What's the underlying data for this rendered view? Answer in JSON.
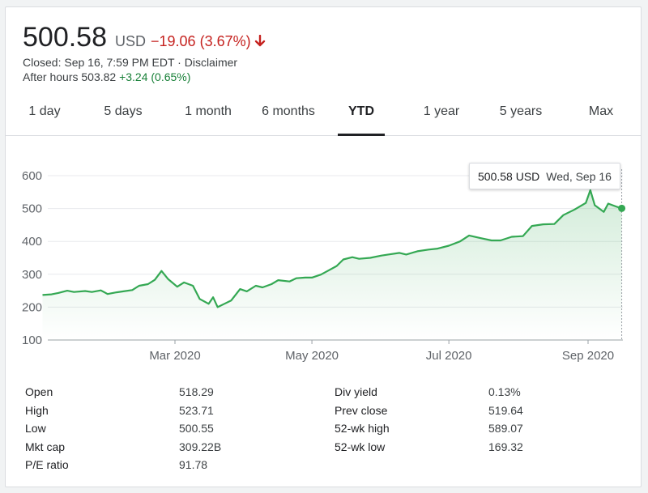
{
  "header": {
    "price": "500.58",
    "currency": "USD",
    "change": "−19.06 (3.67%)",
    "closed_text": "Closed: Sep 16, 7:59 PM EDT · Disclaimer",
    "after_hours_label": "After hours 503.82",
    "after_hours_change": "+3.24 (0.65%)"
  },
  "tabs": [
    {
      "label": "1 day"
    },
    {
      "label": "5 days"
    },
    {
      "label": "1 month"
    },
    {
      "label": "6 months"
    },
    {
      "label": "YTD",
      "active": true
    },
    {
      "label": "1 year"
    },
    {
      "label": "5 years"
    },
    {
      "label": "Max"
    }
  ],
  "tooltip": {
    "value": "500.58 USD",
    "date": "Wed, Sep 16"
  },
  "colors": {
    "line": "#34a853",
    "negative": "#c5221f",
    "positive": "#188038"
  },
  "chart_data": {
    "type": "line",
    "ylim": [
      100,
      600
    ],
    "yticks": [
      100,
      200,
      300,
      400,
      500,
      600
    ],
    "xticks": [
      {
        "label": "Mar 2020",
        "date": "2020-03-01"
      },
      {
        "label": "May 2020",
        "date": "2020-05-01"
      },
      {
        "label": "Jul 2020",
        "date": "2020-07-01"
      },
      {
        "label": "Sep 2020",
        "date": "2020-09-01"
      }
    ],
    "grid": true,
    "series": [
      {
        "x": [
          "2020-01-02",
          "2020-01-06",
          "2020-01-09",
          "2020-01-13",
          "2020-01-16",
          "2020-01-21",
          "2020-01-24",
          "2020-01-28",
          "2020-01-31",
          "2020-02-04",
          "2020-02-07",
          "2020-02-11",
          "2020-02-14",
          "2020-02-18",
          "2020-02-21",
          "2020-02-24",
          "2020-02-27",
          "2020-03-02",
          "2020-03-05",
          "2020-03-09",
          "2020-03-12",
          "2020-03-16",
          "2020-03-18",
          "2020-03-20",
          "2020-03-23",
          "2020-03-26",
          "2020-03-30",
          "2020-04-02",
          "2020-04-06",
          "2020-04-09",
          "2020-04-13",
          "2020-04-16",
          "2020-04-21",
          "2020-04-24",
          "2020-04-28",
          "2020-05-01",
          "2020-05-05",
          "2020-05-08",
          "2020-05-12",
          "2020-05-15",
          "2020-05-19",
          "2020-05-22",
          "2020-05-27",
          "2020-06-01",
          "2020-06-04",
          "2020-06-09",
          "2020-06-12",
          "2020-06-17",
          "2020-06-22",
          "2020-06-26",
          "2020-07-01",
          "2020-07-06",
          "2020-07-10",
          "2020-07-15",
          "2020-07-20",
          "2020-07-24",
          "2020-07-29",
          "2020-08-03",
          "2020-08-07",
          "2020-08-12",
          "2020-08-17",
          "2020-08-21",
          "2020-08-26",
          "2020-08-31",
          "2020-09-02",
          "2020-09-04",
          "2020-09-08",
          "2020-09-10",
          "2020-09-14",
          "2020-09-16"
        ],
        "y": [
          237,
          239,
          243,
          250,
          246,
          249,
          246,
          251,
          240,
          245,
          248,
          252,
          265,
          270,
          283,
          310,
          285,
          262,
          275,
          265,
          225,
          210,
          230,
          200,
          210,
          220,
          255,
          248,
          265,
          260,
          270,
          282,
          278,
          288,
          290,
          290,
          299,
          310,
          325,
          345,
          352,
          347,
          350,
          357,
          360,
          365,
          360,
          370,
          375,
          378,
          387,
          400,
          418,
          410,
          403,
          403,
          414,
          416,
          447,
          452,
          453,
          480,
          497,
          517,
          556,
          510,
          490,
          515,
          505,
          500.58
        ]
      }
    ]
  },
  "stats": {
    "left": [
      {
        "label": "Open",
        "value": "518.29"
      },
      {
        "label": "High",
        "value": "523.71"
      },
      {
        "label": "Low",
        "value": "500.55"
      },
      {
        "label": "Mkt cap",
        "value": "309.22B"
      },
      {
        "label": "P/E ratio",
        "value": "91.78"
      }
    ],
    "right": [
      {
        "label": "Div yield",
        "value": "0.13%"
      },
      {
        "label": "Prev close",
        "value": "519.64"
      },
      {
        "label": "52-wk high",
        "value": "589.07"
      },
      {
        "label": "52-wk low",
        "value": "169.32"
      }
    ]
  }
}
